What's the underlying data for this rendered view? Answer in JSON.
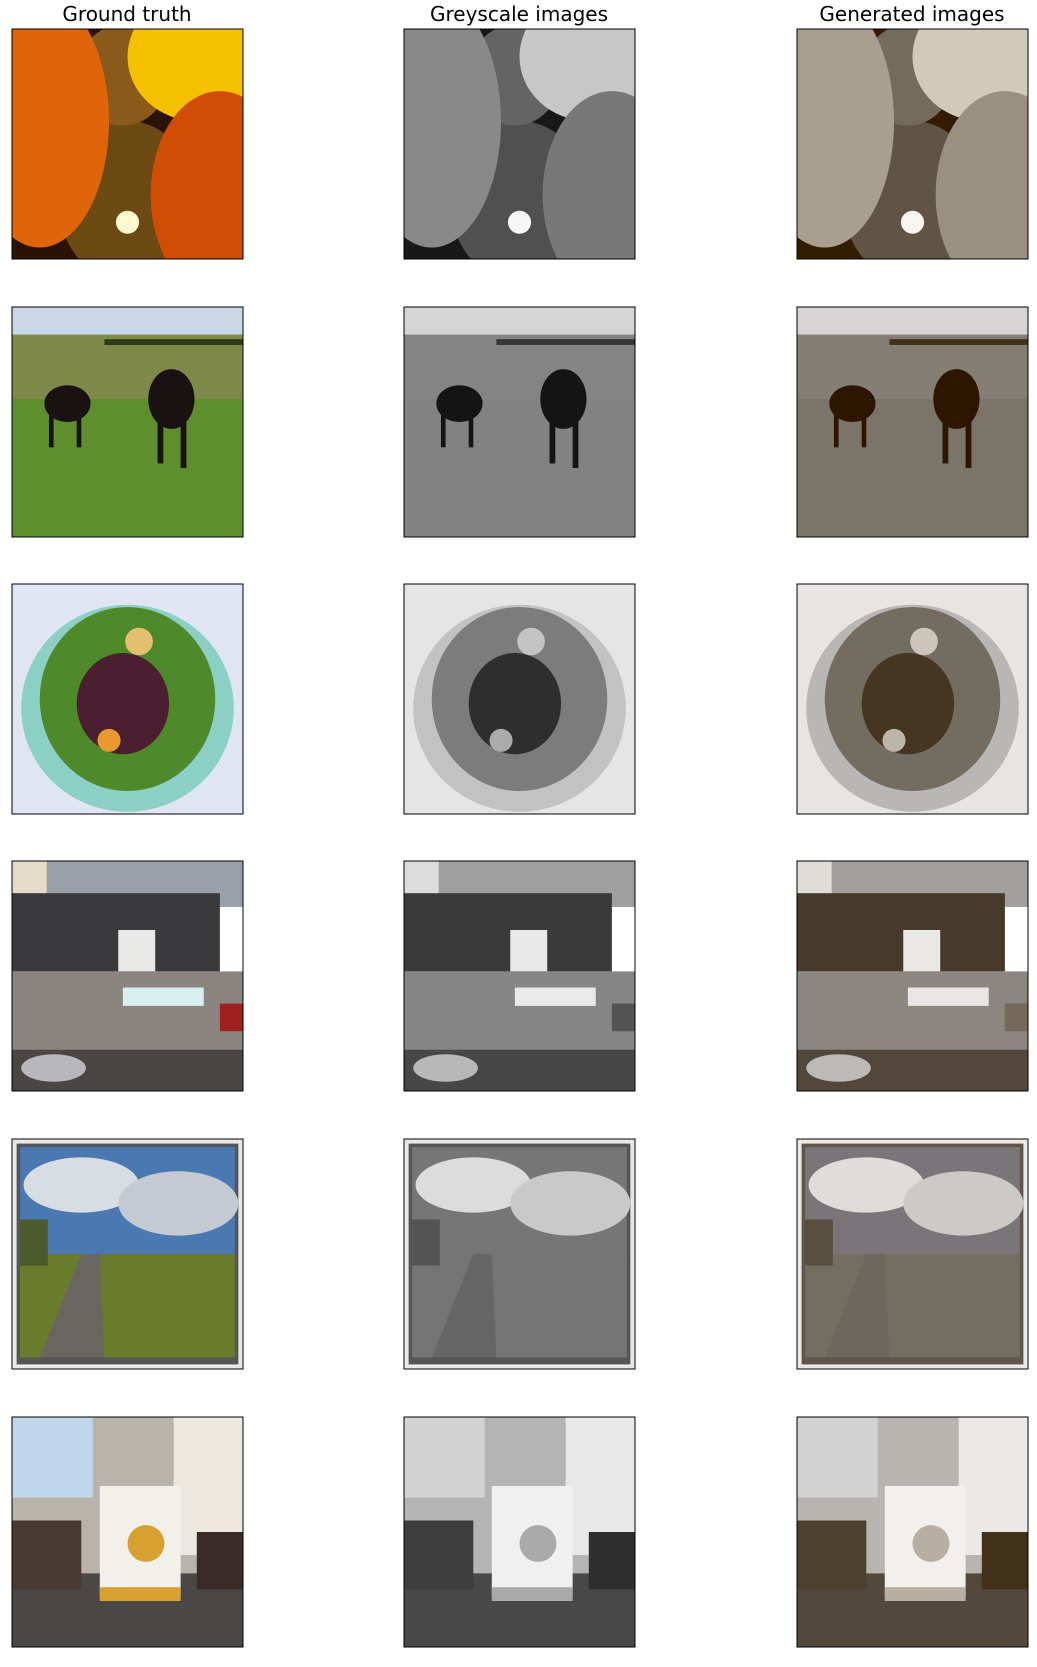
{
  "columns": [
    "Ground truth",
    "Greyscale images",
    "Generated images"
  ]
}
